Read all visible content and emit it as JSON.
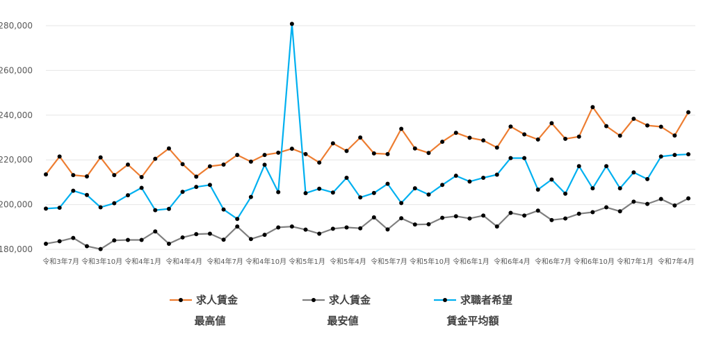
{
  "chart_data": {
    "type": "line",
    "ylim": [
      180000,
      280000
    ],
    "yticks": [
      "180,000",
      "200,000",
      "220,000",
      "240,000",
      "260,000",
      "280,000"
    ],
    "grid": true,
    "legend_position": "bottom",
    "x_tick_labels": [
      {
        "index": 1,
        "label": "令和3年7月"
      },
      {
        "index": 4,
        "label": "令和3年10月"
      },
      {
        "index": 7,
        "label": "令和4年1月"
      },
      {
        "index": 10,
        "label": "令和4年4月"
      },
      {
        "index": 13,
        "label": "令和4年7月"
      },
      {
        "index": 16,
        "label": "令和4年10月"
      },
      {
        "index": 19,
        "label": "令和5年1月"
      },
      {
        "index": 22,
        "label": "令和5年4月"
      },
      {
        "index": 25,
        "label": "令和5年7月"
      },
      {
        "index": 28,
        "label": "令和5年10月"
      },
      {
        "index": 31,
        "label": "令和6年1月"
      },
      {
        "index": 34,
        "label": "令和6年4月"
      },
      {
        "index": 37,
        "label": "令和6年7月"
      },
      {
        "index": 40,
        "label": "令和6年10月"
      },
      {
        "index": 43,
        "label": "令和7年1月"
      },
      {
        "index": 46,
        "label": "令和7年4月"
      }
    ],
    "series": [
      {
        "name_line1": "求人賃金",
        "name_line2": "最高値",
        "color": "#ED7D31",
        "values": [
          213500,
          221500,
          213200,
          212600,
          221100,
          213200,
          217900,
          212300,
          220500,
          225100,
          218100,
          212500,
          217100,
          217900,
          222200,
          219200,
          222200,
          223200,
          225000,
          222600,
          218800,
          227400,
          224000,
          230000,
          222900,
          222600,
          233900,
          225100,
          223100,
          228100,
          232100,
          229900,
          228700,
          225500,
          234900,
          231400,
          229100,
          236400,
          229400,
          230400,
          243600,
          235100,
          230800,
          238400,
          235400,
          234800,
          230900,
          241300
        ]
      },
      {
        "name_line1": "求人賃金",
        "name_line2": "最安値",
        "color": "#7F7F7F",
        "values": [
          182500,
          183600,
          185100,
          181400,
          180100,
          184000,
          184200,
          184200,
          188000,
          182500,
          185300,
          186800,
          187000,
          184300,
          190200,
          184600,
          186500,
          189800,
          190200,
          188800,
          187000,
          189200,
          189800,
          189400,
          194300,
          188900,
          193900,
          191100,
          191200,
          194100,
          194800,
          193800,
          195100,
          190200,
          196300,
          195100,
          197300,
          193100,
          193800,
          195900,
          196600,
          198800,
          197000,
          201300,
          200300,
          202500,
          199600,
          202800
        ]
      },
      {
        "name_line1": "求職者希望",
        "name_line2": "賃金平均額",
        "color": "#00B0F0",
        "values": [
          198200,
          198600,
          206200,
          204300,
          198800,
          200600,
          204200,
          207500,
          197500,
          198100,
          205700,
          207900,
          208800,
          197800,
          193600,
          203400,
          217800,
          205600,
          280800,
          205100,
          207100,
          205400,
          212000,
          203200,
          205200,
          209300,
          200700,
          207300,
          204500,
          208800,
          212900,
          210300,
          212000,
          213400,
          220800,
          220800,
          206700,
          211200,
          204900,
          217200,
          207300,
          217200,
          207300,
          214400,
          211400,
          221500,
          222200,
          222500
        ]
      }
    ]
  }
}
